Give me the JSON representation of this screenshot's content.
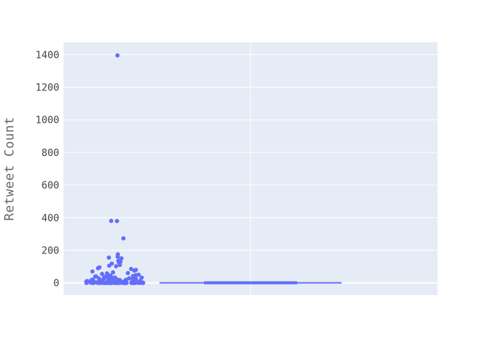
{
  "chart_data": {
    "type": "box",
    "title": "",
    "xlabel": "",
    "ylabel": "Retweet Count",
    "ylim": [
      -75,
      1475
    ],
    "yticks": [
      0,
      200,
      400,
      600,
      800,
      1000,
      1200,
      1400
    ],
    "xticks": [
      ""
    ],
    "grid": true,
    "legend": "none",
    "colors": {
      "plot_bg": "#e5ecf6",
      "grid": "#ffffff",
      "marker": "#636efa"
    },
    "box": {
      "min": 0,
      "q1": 0,
      "median": 0,
      "q3": 1,
      "upper_fence": 2,
      "points_side": "left"
    },
    "points": [
      1395,
      380,
      379,
      273,
      175,
      160,
      155,
      150,
      135,
      130,
      125,
      118,
      110,
      105,
      102,
      95,
      90,
      85,
      80,
      75,
      70,
      65,
      60,
      58,
      55,
      52,
      50,
      48,
      45,
      43,
      42,
      40,
      38,
      36,
      35,
      33,
      32,
      30,
      28,
      27,
      26,
      25,
      24,
      23,
      22,
      21,
      20,
      19,
      18,
      17,
      16,
      15,
      15,
      14,
      14,
      13,
      12,
      12,
      11,
      11,
      10,
      10,
      9,
      9,
      9,
      8,
      8,
      8,
      7,
      7,
      7,
      6,
      6,
      6,
      6,
      5,
      5,
      5,
      5,
      4,
      4,
      4,
      4,
      4,
      3,
      3,
      3,
      3,
      3,
      3,
      2,
      2,
      2,
      2,
      2,
      2,
      2,
      1,
      1,
      1,
      1,
      1,
      1,
      1,
      1,
      1,
      1,
      1,
      1,
      1,
      0,
      0,
      0,
      0,
      0,
      0,
      0,
      0,
      0,
      0,
      0,
      0,
      0,
      0,
      0,
      0,
      0,
      0,
      0,
      0,
      0,
      0,
      0,
      0,
      0,
      0,
      0,
      0,
      0,
      0,
      0,
      0,
      0,
      0,
      0,
      0,
      0,
      0,
      0,
      0
    ]
  }
}
